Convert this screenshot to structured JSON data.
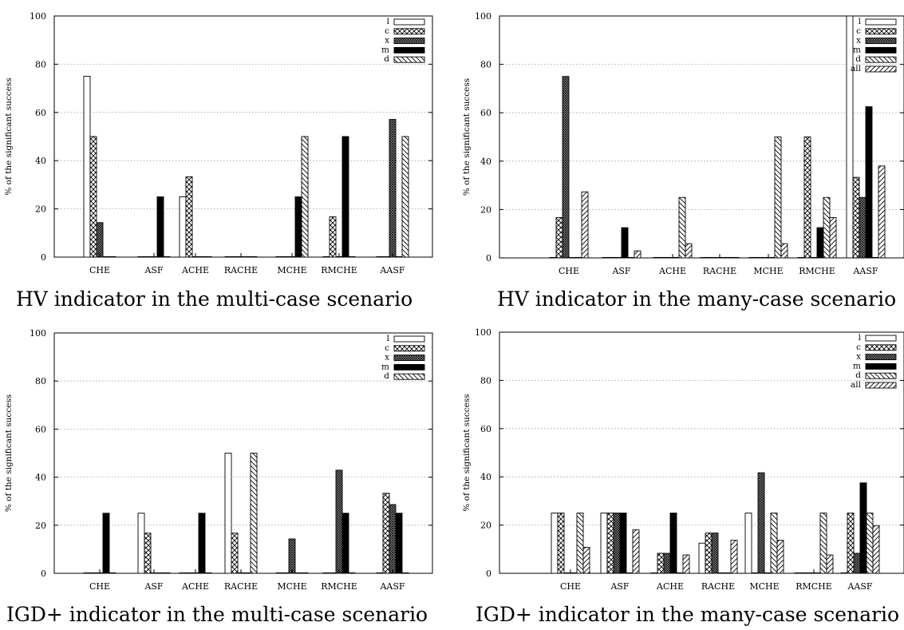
{
  "chart_data": [
    {
      "type": "bar",
      "title": "",
      "caption": "HV indicator in the multi-case scenario",
      "xlabel": "",
      "ylabel": "% of the significant success",
      "categories": [
        "CHE",
        "ASF",
        "ACHE",
        "RACHE",
        "MCHE",
        "RMCHE",
        "AASF"
      ],
      "ylim": [
        0,
        100
      ],
      "yticks": [
        0,
        20,
        40,
        60,
        80,
        100
      ],
      "grid": true,
      "legend_position": "top-right",
      "series": [
        {
          "name": "l",
          "pattern": "empty",
          "values": [
            75,
            0,
            25,
            0,
            0,
            0,
            0
          ]
        },
        {
          "name": "c",
          "pattern": "crosshatch",
          "values": [
            50,
            0,
            33.3,
            0,
            0,
            16.7,
            0
          ]
        },
        {
          "name": "x",
          "pattern": "dense",
          "values": [
            14.3,
            0,
            0,
            0,
            0,
            0,
            57.1
          ]
        },
        {
          "name": "m",
          "pattern": "solid",
          "values": [
            0,
            25,
            0,
            0,
            25,
            50,
            0
          ]
        },
        {
          "name": "d",
          "pattern": "diagonal-back",
          "values": [
            0,
            0,
            0,
            0,
            50,
            0,
            50
          ]
        }
      ]
    },
    {
      "type": "bar",
      "title": "",
      "caption": "HV indicator in the many-case scenario",
      "xlabel": "",
      "ylabel": "% of the significant success",
      "categories": [
        "CHE",
        "ASF",
        "ACHE",
        "RACHE",
        "MCHE",
        "RMCHE",
        "AASF"
      ],
      "ylim": [
        0,
        100
      ],
      "yticks": [
        0,
        20,
        40,
        60,
        80,
        100
      ],
      "grid": true,
      "legend_position": "top-right",
      "series": [
        {
          "name": "l",
          "pattern": "empty",
          "values": [
            0,
            0,
            0,
            0,
            0,
            0,
            100
          ]
        },
        {
          "name": "c",
          "pattern": "crosshatch",
          "values": [
            16.7,
            0,
            0,
            0,
            0,
            50,
            33.3
          ]
        },
        {
          "name": "x",
          "pattern": "dense",
          "values": [
            75,
            0,
            0,
            0,
            0,
            0,
            25
          ]
        },
        {
          "name": "m",
          "pattern": "solid",
          "values": [
            0,
            12.5,
            0,
            0,
            0,
            12.5,
            62.5
          ]
        },
        {
          "name": "d",
          "pattern": "diagonal-back",
          "values": [
            0,
            0,
            25,
            0,
            50,
            25,
            0
          ]
        },
        {
          "name": "all",
          "pattern": "diagonal-fwd",
          "values": [
            27.3,
            2.9,
            5.9,
            0,
            5.9,
            16.7,
            38
          ]
        }
      ]
    },
    {
      "type": "bar",
      "title": "",
      "caption": "IGD+ indicator in the multi-case scenario",
      "xlabel": "",
      "ylabel": "% of the significant success",
      "categories": [
        "CHE",
        "ASF",
        "ACHE",
        "RACHE",
        "MCHE",
        "RMCHE",
        "AASF"
      ],
      "ylim": [
        0,
        100
      ],
      "yticks": [
        0,
        20,
        40,
        60,
        80,
        100
      ],
      "grid": true,
      "legend_position": "top-right",
      "series": [
        {
          "name": "l",
          "pattern": "empty",
          "values": [
            0,
            25,
            0,
            50,
            0,
            0,
            0
          ]
        },
        {
          "name": "c",
          "pattern": "crosshatch",
          "values": [
            0,
            16.7,
            0,
            16.7,
            0,
            0,
            33.3
          ]
        },
        {
          "name": "x",
          "pattern": "dense",
          "values": [
            0,
            0,
            0,
            0,
            14.3,
            42.9,
            28.6
          ]
        },
        {
          "name": "m",
          "pattern": "solid",
          "values": [
            25,
            0,
            25,
            0,
            0,
            25,
            25
          ]
        },
        {
          "name": "d",
          "pattern": "diagonal-back",
          "values": [
            0,
            0,
            0,
            50,
            0,
            0,
            0
          ]
        }
      ]
    },
    {
      "type": "bar",
      "title": "",
      "caption": "IGD+ indicator in the many-case scenario",
      "xlabel": "",
      "ylabel": "% of the significant success",
      "categories": [
        "CHE",
        "ASF",
        "ACHE",
        "RACHE",
        "MCHE",
        "RMCHE",
        "AASF"
      ],
      "ylim": [
        0,
        100
      ],
      "yticks": [
        0,
        20,
        40,
        60,
        80,
        100
      ],
      "grid": true,
      "legend_position": "top-right",
      "series": [
        {
          "name": "l",
          "pattern": "empty",
          "values": [
            25,
            25,
            0,
            12.5,
            25,
            0,
            0
          ]
        },
        {
          "name": "c",
          "pattern": "crosshatch",
          "values": [
            25,
            25,
            8.3,
            16.7,
            0,
            0,
            25
          ]
        },
        {
          "name": "x",
          "pattern": "dense",
          "values": [
            0,
            25,
            8.3,
            16.7,
            41.7,
            0,
            8.3
          ]
        },
        {
          "name": "m",
          "pattern": "solid",
          "values": [
            0,
            25,
            25,
            0,
            0,
            0,
            37.5
          ]
        },
        {
          "name": "d",
          "pattern": "diagonal-back",
          "values": [
            25,
            0,
            0,
            0,
            25,
            25,
            25
          ]
        },
        {
          "name": "all",
          "pattern": "diagonal-fwd",
          "values": [
            10.8,
            18,
            7.6,
            13.7,
            13.7,
            7.6,
            19.8
          ]
        }
      ]
    }
  ]
}
